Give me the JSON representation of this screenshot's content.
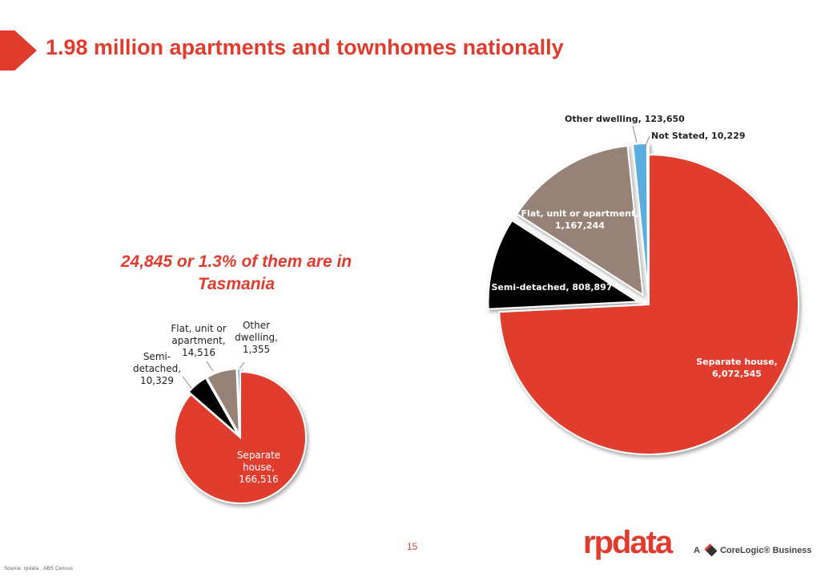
{
  "header": {
    "title": "1.98 million apartments and townhomes nationally"
  },
  "callout": {
    "line1": "24,845 or 1.3% of them are in",
    "line2": "Tasmania"
  },
  "colors": {
    "separate": "#e03c2e",
    "semi": "#000000",
    "flat": "#968277",
    "other": "#5aaedf",
    "accent": "#e03c2e"
  },
  "chart_data": [
    {
      "type": "pie",
      "slices": [
        {
          "label": "Separate house, 166,516",
          "value": 166516,
          "color": "#e03c2e"
        },
        {
          "label": "Semi-detached, 10,329",
          "value": 10329,
          "color": "#000000"
        },
        {
          "label": "Flat, unit or apartment, 14,516",
          "value": 14516,
          "color": "#968277"
        },
        {
          "label": "Other dwelling, 1,355",
          "value": 1355,
          "color": "#5aaedf"
        }
      ],
      "labels": {
        "separate": [
          "Separate",
          "house,",
          "166,516"
        ],
        "semi": [
          "Semi-",
          "detached,",
          "10,329"
        ],
        "flat": [
          "Flat, unit or",
          "apartment,",
          "14,516"
        ],
        "other": [
          "Other",
          "dwelling,",
          "1,355"
        ]
      }
    },
    {
      "type": "pie",
      "slices": [
        {
          "label": "Separate house, 6,072,545",
          "value": 6072545,
          "color": "#e03c2e"
        },
        {
          "label": "Semi-detached, 808,897",
          "value": 808897,
          "color": "#000000"
        },
        {
          "label": "Flat, unit or apartment, 1,167,244",
          "value": 1167244,
          "color": "#968277"
        },
        {
          "label": "Other dwelling, 123,650",
          "value": 123650,
          "color": "#5aaedf"
        },
        {
          "label": "Not Stated, 10,229",
          "value": 10229,
          "color": "#5aaedf"
        }
      ],
      "labels": {
        "separate": [
          "Separate house,",
          "6,072,545"
        ],
        "semi": [
          "Semi-detached, 808,897"
        ],
        "flat": [
          "Flat, unit or apartment,",
          "1,167,244"
        ],
        "other": [
          "Other dwelling, 123,650"
        ],
        "notstated": [
          "Not Stated, 10,229"
        ]
      }
    }
  ],
  "footer": {
    "page_number": "15",
    "source": "Source: rpdata , ABS Census",
    "brand": "rpdata",
    "brand_sub_a": "A",
    "brand_sub_b": "CoreLogic® Business"
  }
}
